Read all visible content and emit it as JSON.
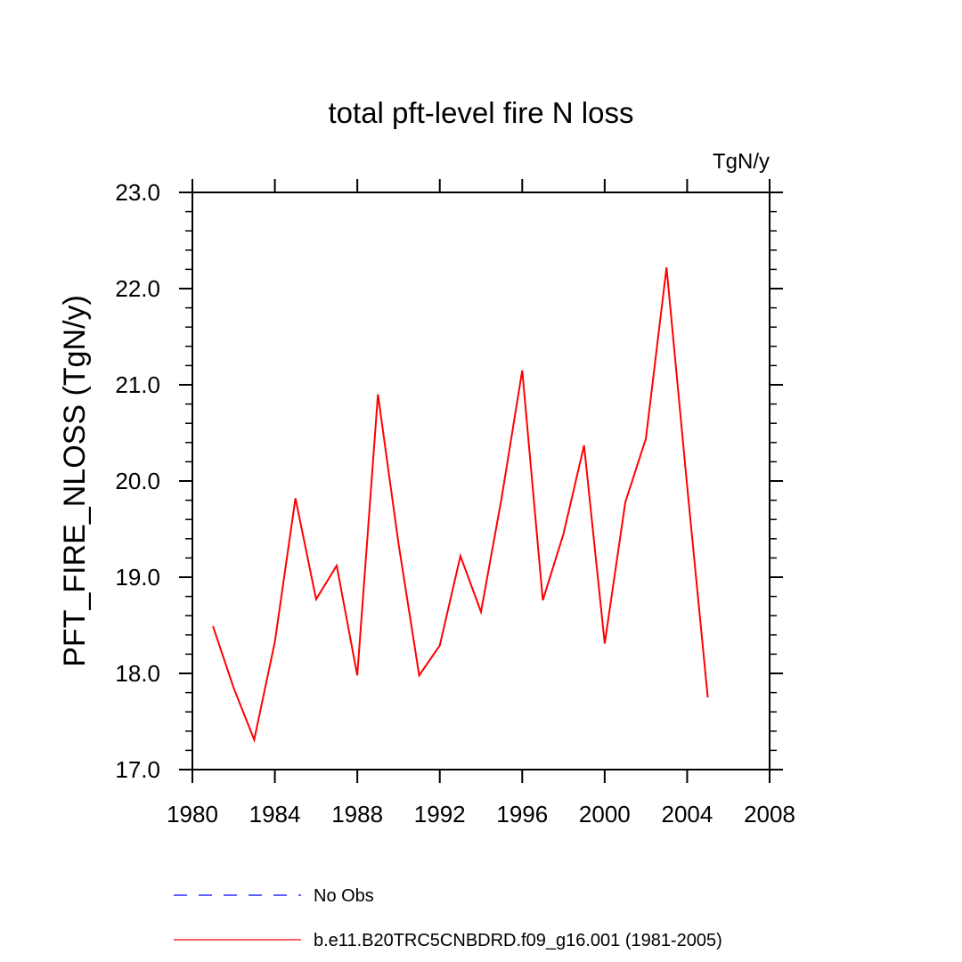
{
  "chart_data": {
    "type": "line",
    "title": "total pft-level fire N loss",
    "units": "TgN/y",
    "ylabel": "PFT_FIRE_NLOSS  (TgN/y)",
    "xlabel": "",
    "xlim": [
      1980,
      2008
    ],
    "ylim": [
      17.0,
      23.0
    ],
    "x_ticks": [
      1980,
      1984,
      1988,
      1992,
      1996,
      2000,
      2004,
      2008
    ],
    "x_tick_labels": [
      "1980",
      "1984",
      "1988",
      "1992",
      "1996",
      "2000",
      "2004",
      "2008"
    ],
    "y_ticks": [
      17.0,
      18.0,
      19.0,
      20.0,
      21.0,
      22.0,
      23.0
    ],
    "y_tick_labels": [
      "17.0",
      "18.0",
      "19.0",
      "20.0",
      "21.0",
      "22.0",
      "23.0"
    ],
    "grid": false,
    "legend_position": "bottom",
    "series": [
      {
        "name": "b.e11.B20TRC5CNBDRD.f09_g16.001 (1981-2005)",
        "color": "#ff0000",
        "style": "solid",
        "x": [
          1981,
          1982,
          1983,
          1984,
          1985,
          1986,
          1987,
          1988,
          1989,
          1990,
          1991,
          1992,
          1993,
          1994,
          1995,
          1996,
          1997,
          1998,
          1999,
          2000,
          2001,
          2002,
          2003,
          2004,
          2005
        ],
        "y": [
          18.49,
          17.85,
          17.31,
          18.33,
          19.82,
          18.77,
          19.12,
          17.98,
          20.9,
          19.35,
          17.98,
          18.29,
          19.22,
          18.64,
          19.82,
          21.15,
          18.76,
          19.45,
          20.37,
          18.31,
          19.78,
          20.44,
          22.22,
          19.95,
          17.75
        ]
      }
    ],
    "legend": [
      {
        "label": "No Obs",
        "color": "#0000ff",
        "style": "dashed"
      },
      {
        "label": "b.e11.B20TRC5CNBDRD.f09_g16.001 (1981-2005)",
        "color": "#ff0000",
        "style": "solid"
      }
    ]
  }
}
